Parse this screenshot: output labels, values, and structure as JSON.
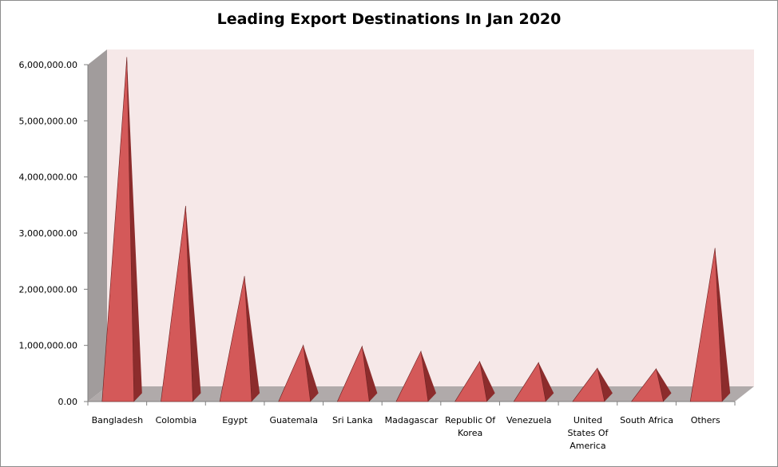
{
  "chart_data": {
    "type": "bar",
    "style": "3d-pyramid",
    "title": "Leading Export Destinations In Jan 2020",
    "xlabel": "",
    "ylabel": "",
    "ylim": [
      0,
      6000000
    ],
    "yticks": [
      0,
      1000000,
      2000000,
      3000000,
      4000000,
      5000000,
      6000000
    ],
    "ytick_labels": [
      "0.00",
      "1,000,000.00",
      "2,000,000.00",
      "3,000,000.00",
      "4,000,000.00",
      "5,000,000.00",
      "6,000,000.00"
    ],
    "categories": [
      "Bangladesh",
      "Colombia",
      "Egypt",
      "Guatemala",
      "Sri Lanka",
      "Madagascar",
      "Republic Of Korea",
      "Venezuela",
      "United States Of America",
      "South Africa",
      "Others"
    ],
    "category_lines": [
      [
        "Bangladesh"
      ],
      [
        "Colombia"
      ],
      [
        "Egypt"
      ],
      [
        "Guatemala"
      ],
      [
        "Sri Lanka"
      ],
      [
        "Madagascar"
      ],
      [
        "Republic Of",
        "Korea"
      ],
      [
        "Venezuela"
      ],
      [
        "United",
        "States Of",
        "America"
      ],
      [
        "South Africa"
      ],
      [
        "Others"
      ]
    ],
    "values": [
      6000000,
      3350000,
      2100000,
      870000,
      850000,
      760000,
      580000,
      560000,
      460000,
      450000,
      2600000
    ],
    "grid": false,
    "legend": "none",
    "colors": {
      "plot_wall": "#f6e8e8",
      "side_wall": "#a19c9c",
      "floor": "#b0aaaa",
      "pyramid_light": "#d45959",
      "pyramid_dark": "#8c2c2c"
    }
  }
}
